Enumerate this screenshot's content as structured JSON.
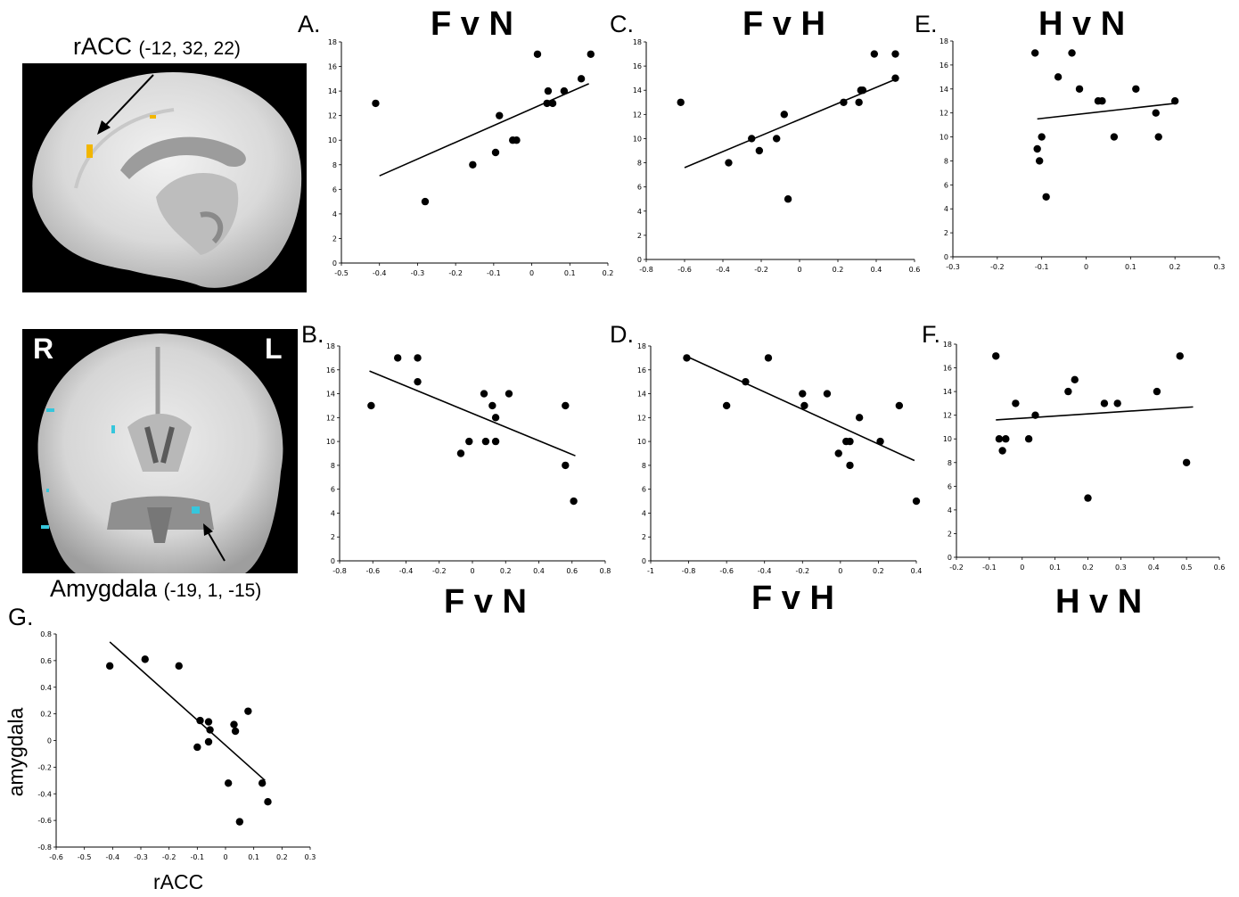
{
  "figure": {
    "top_caption": {
      "name": "rACC",
      "coords": "(-12, 32, 22)"
    },
    "bottom_caption": {
      "name": "Amygdala",
      "coords": "(-19, 1, -15)"
    },
    "orientation": {
      "right": "R",
      "left": "L"
    },
    "colors": {
      "racc_cluster": "#f2b600",
      "amygdala_cluster": "#36c6dc",
      "scan_background": "#000000"
    }
  },
  "panels": {
    "A": {
      "letter": "A.",
      "title": "F v N"
    },
    "B": {
      "letter": "B.",
      "title": "F v N"
    },
    "C": {
      "letter": "C.",
      "title": "F v H"
    },
    "D": {
      "letter": "D.",
      "title": "F v H"
    },
    "E": {
      "letter": "E.",
      "title": "H v N"
    },
    "F": {
      "letter": "F.",
      "title": "H v N"
    },
    "G": {
      "letter": "G.",
      "xlabel": "rACC",
      "ylabel": "amygdala"
    }
  },
  "chart_data": [
    {
      "panel": "A",
      "type": "scatter",
      "title": "F v N",
      "xlim": [
        -0.5,
        0.2
      ],
      "ylim": [
        0,
        18
      ],
      "xticks": [
        "-0.5",
        "-0.4",
        "-0.3",
        "-0.2",
        "-0.1",
        "0",
        "0.1",
        "0.2"
      ],
      "yticks": [
        "0",
        "2",
        "4",
        "6",
        "8",
        "10",
        "12",
        "14",
        "16",
        "18"
      ],
      "x": [
        -0.41,
        -0.28,
        -0.155,
        -0.095,
        -0.085,
        -0.05,
        -0.04,
        0.015,
        0.04,
        0.043,
        0.055,
        0.085,
        0.13,
        0.155
      ],
      "y": [
        13,
        5,
        8,
        9,
        12,
        10,
        10,
        17,
        13,
        14,
        13,
        14,
        15,
        17
      ],
      "fit": {
        "x": [
          -0.4,
          0.15
        ],
        "y": [
          7.1,
          14.6
        ]
      }
    },
    {
      "panel": "C",
      "type": "scatter",
      "title": "F v H",
      "xlim": [
        -0.8,
        0.6
      ],
      "ylim": [
        0,
        18
      ],
      "xticks": [
        "-0.8",
        "-0.6",
        "-0.4",
        "-0.2",
        "0",
        "0.2",
        "0.4",
        "0.6"
      ],
      "yticks": [
        "0",
        "2",
        "4",
        "6",
        "8",
        "10",
        "12",
        "14",
        "16",
        "18"
      ],
      "x": [
        -0.62,
        -0.37,
        -0.25,
        -0.21,
        -0.12,
        -0.08,
        -0.06,
        0.23,
        0.31,
        0.32,
        0.33,
        0.39,
        0.5,
        0.5
      ],
      "y": [
        13,
        8,
        10,
        9,
        10,
        12,
        5,
        13,
        13,
        14,
        14,
        17,
        15,
        17
      ],
      "fit": {
        "x": [
          -0.6,
          0.5
        ],
        "y": [
          7.6,
          14.9
        ]
      }
    },
    {
      "panel": "E",
      "type": "scatter",
      "title": "H v N",
      "xlim": [
        -0.3,
        0.3
      ],
      "ylim": [
        0,
        18
      ],
      "xticks": [
        "-0.3",
        "-0.2",
        "-0.1",
        "0",
        "0.1",
        "0.2",
        "0.3"
      ],
      "yticks": [
        "0",
        "2",
        "4",
        "6",
        "8",
        "10",
        "12",
        "14",
        "16",
        "18"
      ],
      "x": [
        -0.115,
        -0.11,
        -0.105,
        -0.1,
        -0.09,
        -0.063,
        -0.032,
        -0.015,
        0.027,
        0.036,
        0.063,
        0.112,
        0.157,
        0.163,
        0.2
      ],
      "y": [
        17,
        9,
        8,
        10,
        5,
        15,
        17,
        14,
        13,
        13,
        10,
        14,
        12,
        10,
        13
      ],
      "fit": {
        "x": [
          -0.11,
          0.2
        ],
        "y": [
          11.5,
          12.8
        ]
      }
    },
    {
      "panel": "B",
      "type": "scatter",
      "xlim": [
        -0.8,
        0.8
      ],
      "ylim": [
        0,
        18
      ],
      "xticks": [
        "-0.8",
        "-0.6",
        "-0.4",
        "-0.2",
        "0",
        "0.2",
        "0.4",
        "0.6",
        "0.8"
      ],
      "yticks": [
        "0",
        "2",
        "4",
        "6",
        "8",
        "10",
        "12",
        "14",
        "16",
        "18"
      ],
      "x": [
        -0.61,
        -0.45,
        -0.33,
        -0.33,
        -0.07,
        -0.02,
        0.07,
        0.08,
        0.12,
        0.14,
        0.14,
        0.22,
        0.56,
        0.56,
        0.61
      ],
      "y": [
        13,
        17,
        17,
        15,
        9,
        10,
        14,
        10,
        13,
        12,
        10,
        14,
        13,
        8,
        5
      ],
      "fit": {
        "x": [
          -0.62,
          0.62
        ],
        "y": [
          15.9,
          8.8
        ]
      }
    },
    {
      "panel": "D",
      "type": "scatter",
      "xlim": [
        -1,
        0.4
      ],
      "ylim": [
        0,
        18
      ],
      "xticks": [
        "-1",
        "-0.8",
        "-0.6",
        "-0.4",
        "-0.2",
        "0",
        "0.2",
        "0.4"
      ],
      "yticks": [
        "0",
        "2",
        "4",
        "6",
        "8",
        "10",
        "12",
        "14",
        "16",
        "18"
      ],
      "x": [
        -0.81,
        -0.6,
        -0.5,
        -0.38,
        -0.2,
        -0.19,
        -0.07,
        -0.01,
        0.03,
        0.05,
        0.05,
        0.1,
        0.21,
        0.31,
        0.4
      ],
      "y": [
        17,
        13,
        15,
        17,
        14,
        13,
        14,
        9,
        10,
        10,
        8,
        12,
        10,
        13,
        5
      ],
      "fit": {
        "x": [
          -0.82,
          0.39
        ],
        "y": [
          17.2,
          8.4
        ]
      }
    },
    {
      "panel": "F",
      "type": "scatter",
      "xlim": [
        -0.2,
        0.6
      ],
      "ylim": [
        0,
        18
      ],
      "xticks": [
        "-0.2",
        "-0.1",
        "0",
        "0.1",
        "0.2",
        "0.3",
        "0.4",
        "0.5",
        "0.6"
      ],
      "yticks": [
        "0",
        "2",
        "4",
        "6",
        "8",
        "10",
        "12",
        "14",
        "16",
        "18"
      ],
      "x": [
        -0.08,
        -0.07,
        -0.06,
        -0.05,
        -0.02,
        0.02,
        0.04,
        0.14,
        0.16,
        0.2,
        0.25,
        0.29,
        0.41,
        0.48,
        0.5
      ],
      "y": [
        17,
        10,
        9,
        10,
        13,
        10,
        12,
        14,
        15,
        5,
        13,
        13,
        14,
        17,
        8
      ],
      "fit": {
        "x": [
          -0.08,
          0.52
        ],
        "y": [
          11.6,
          12.7
        ]
      }
    },
    {
      "panel": "G",
      "type": "scatter",
      "xlabel": "rACC",
      "ylabel": "amygdala",
      "xlim": [
        -0.6,
        0.3
      ],
      "ylim": [
        -0.8,
        0.8
      ],
      "xticks": [
        "-0.6",
        "-0.5",
        "-0.4",
        "-0.3",
        "-0.2",
        "-0.1",
        "0",
        "0.1",
        "0.2",
        "0.3"
      ],
      "yticks": [
        "-0.8",
        "-0.6",
        "-0.4",
        "-0.2",
        "0",
        "0.2",
        "0.4",
        "0.6",
        "0.8"
      ],
      "x": [
        -0.41,
        -0.285,
        -0.165,
        -0.1,
        -0.09,
        -0.06,
        -0.055,
        -0.06,
        0.01,
        0.03,
        0.035,
        0.05,
        0.08,
        0.13,
        0.15
      ],
      "y": [
        0.56,
        0.61,
        0.56,
        -0.05,
        0.15,
        0.14,
        0.08,
        -0.01,
        -0.32,
        0.12,
        0.07,
        -0.61,
        0.22,
        -0.32,
        -0.46
      ],
      "fit": {
        "x": [
          -0.41,
          0.14
        ],
        "y": [
          0.74,
          -0.3
        ]
      }
    }
  ]
}
